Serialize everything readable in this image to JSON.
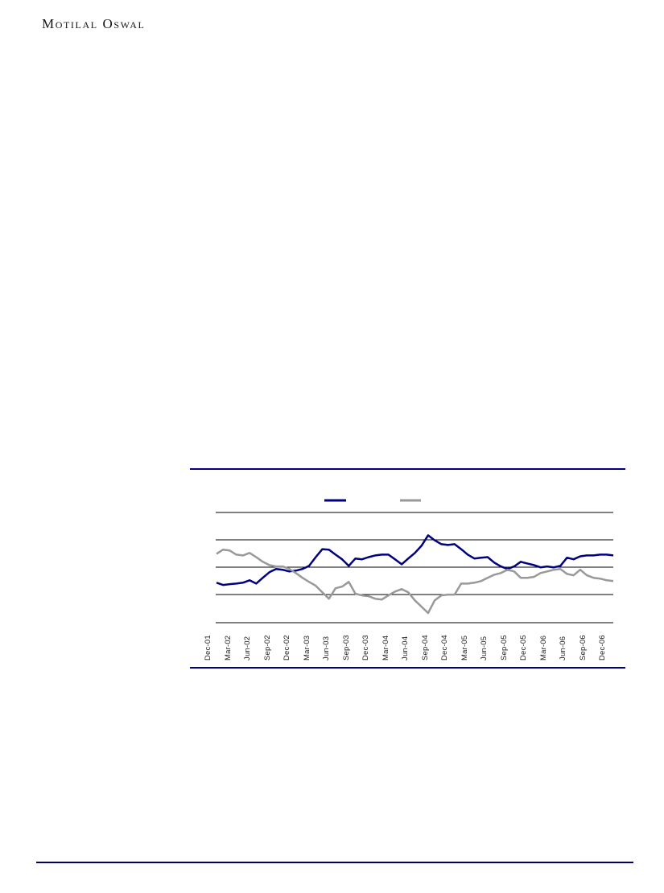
{
  "header": {
    "logo_text": "Motilal Oswal"
  },
  "colors": {
    "accent_navy": "#000080",
    "series_gray": "#999999",
    "gridline_black": "#000000",
    "footer_rule_navy": "#000066",
    "label_text": "#1c1c1c"
  },
  "chart_data": {
    "type": "line",
    "title": "",
    "xlabel": "",
    "ylabel": "",
    "x_tick_labels": [
      "Dec-01",
      "Mar-02",
      "Jun-02",
      "Sep-02",
      "Dec-02",
      "Mar-03",
      "Jun-03",
      "Sep-03",
      "Dec-03",
      "Mar-04",
      "Jun-04",
      "Sep-04",
      "Dec-04",
      "Mar-05",
      "Jun-05",
      "Sep-05",
      "Dec-05",
      "Mar-06",
      "Jun-06",
      "Sep-06",
      "Dec-06"
    ],
    "x_resolution": "monthly points (61), quarterly tick labels, rotated 90deg",
    "y_axis": {
      "tick_labels_visible": false,
      "gridlines": 5,
      "unit_range": [
        0,
        4
      ],
      "grid_on": true
    },
    "legend": {
      "position": "top-center",
      "entries": [
        {
          "label": "",
          "color": "#000080"
        },
        {
          "label": "",
          "color": "#999999"
        }
      ]
    },
    "series": [
      {
        "name": "navy-line",
        "color": "#000080",
        "values": [
          1.45,
          1.37,
          1.4,
          1.42,
          1.45,
          1.54,
          1.42,
          1.63,
          1.83,
          1.95,
          1.92,
          1.86,
          1.89,
          1.95,
          2.06,
          2.38,
          2.67,
          2.65,
          2.47,
          2.3,
          2.06,
          2.33,
          2.3,
          2.38,
          2.44,
          2.47,
          2.47,
          2.3,
          2.12,
          2.33,
          2.53,
          2.79,
          3.17,
          2.99,
          2.85,
          2.82,
          2.85,
          2.67,
          2.47,
          2.33,
          2.36,
          2.38,
          2.18,
          2.04,
          1.95,
          2.04,
          2.21,
          2.15,
          2.09,
          2.01,
          2.04,
          2.01,
          2.06,
          2.36,
          2.3,
          2.41,
          2.44,
          2.44,
          2.47,
          2.47,
          2.44
        ]
      },
      {
        "name": "gray-line",
        "color": "#999999",
        "values": [
          2.5,
          2.65,
          2.62,
          2.47,
          2.44,
          2.53,
          2.38,
          2.21,
          2.09,
          2.04,
          2.04,
          1.95,
          1.8,
          1.63,
          1.48,
          1.34,
          1.1,
          0.87,
          1.25,
          1.31,
          1.48,
          1.05,
          0.99,
          0.96,
          0.87,
          0.84,
          0.99,
          1.13,
          1.22,
          1.1,
          0.81,
          0.58,
          0.35,
          0.81,
          0.99,
          1.02,
          1.02,
          1.42,
          1.42,
          1.45,
          1.51,
          1.63,
          1.74,
          1.8,
          1.92,
          1.86,
          1.63,
          1.63,
          1.66,
          1.8,
          1.86,
          1.92,
          1.95,
          1.77,
          1.72,
          1.92,
          1.72,
          1.63,
          1.6,
          1.54,
          1.51
        ]
      }
    ]
  }
}
